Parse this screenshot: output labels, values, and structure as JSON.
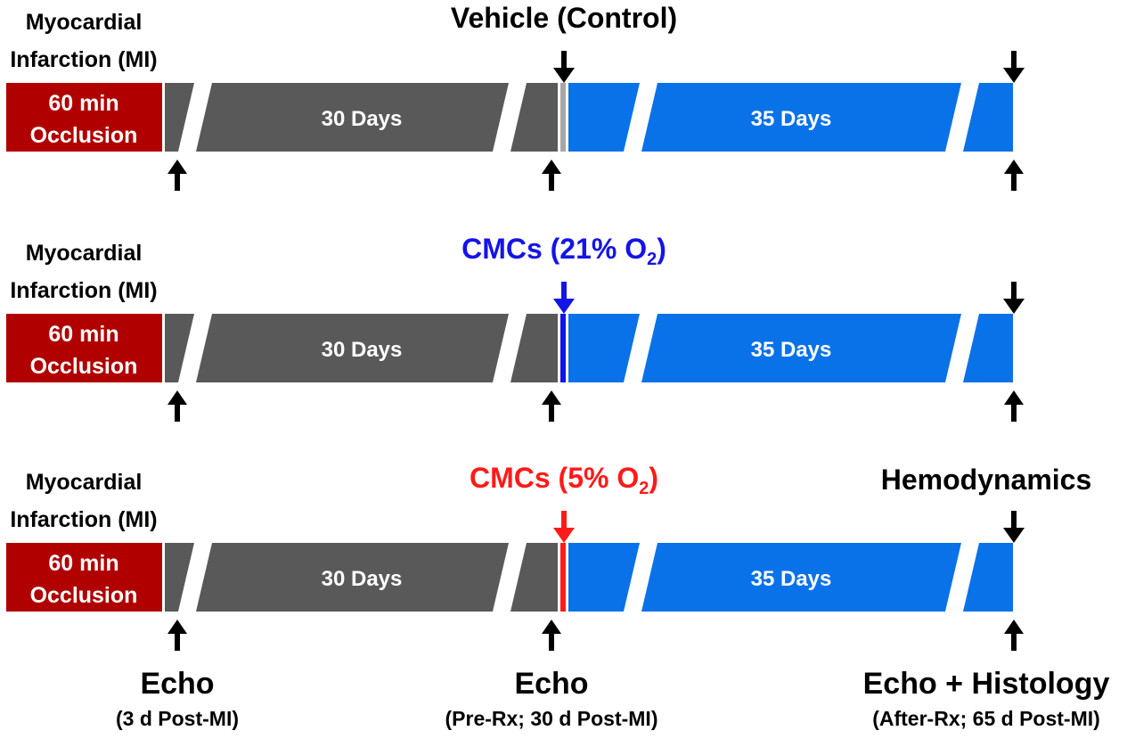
{
  "colors": {
    "occlusion": "#b00000",
    "phase1": "#595959",
    "phase2": "#0a72e8",
    "arrow": "#000000",
    "control_marker": "#a6a6a6",
    "cmc21_marker": "#1414e6",
    "cmc5_marker": "#ff1a1a",
    "cmc21_label": "#1414e6",
    "cmc5_label": "#ff1a1a"
  },
  "groups": [
    {
      "mi_line1": "Myocardial",
      "mi_line2": "Infarction (MI)",
      "occlusion_line1": "60 min",
      "occlusion_line2": "Occlusion",
      "phase1_label": "30 Days",
      "phase2_label": "35 Days",
      "treatment_label": "Vehicle (Control)",
      "treatment_sub": "",
      "treatment_suffix": "",
      "marker_color": "control_marker",
      "treatment_color": "arrow",
      "end_label": ""
    },
    {
      "mi_line1": "Myocardial",
      "mi_line2": "Infarction (MI)",
      "occlusion_line1": "60 min",
      "occlusion_line2": "Occlusion",
      "phase1_label": "30 Days",
      "phase2_label": "35 Days",
      "treatment_label": "CMCs (21% O",
      "treatment_sub": "2",
      "treatment_suffix": ")",
      "marker_color": "cmc21_marker",
      "treatment_color": "cmc21_label",
      "end_label": ""
    },
    {
      "mi_line1": "Myocardial",
      "mi_line2": "Infarction (MI)",
      "occlusion_line1": "60 min",
      "occlusion_line2": "Occlusion",
      "phase1_label": "30 Days",
      "phase2_label": "35 Days",
      "treatment_label": "CMCs (5% O",
      "treatment_sub": "2",
      "treatment_suffix": ")",
      "marker_color": "cmc5_marker",
      "treatment_color": "cmc5_label",
      "end_label": "Hemodynamics"
    }
  ],
  "bottom_labels": [
    {
      "title": "Echo",
      "subtitle": "(3 d Post-MI)"
    },
    {
      "title": "Echo",
      "subtitle": "(Pre-Rx; 30 d Post-MI)"
    },
    {
      "title": "Echo + Histology",
      "subtitle": "(After-Rx; 65 d Post-MI)"
    }
  ]
}
